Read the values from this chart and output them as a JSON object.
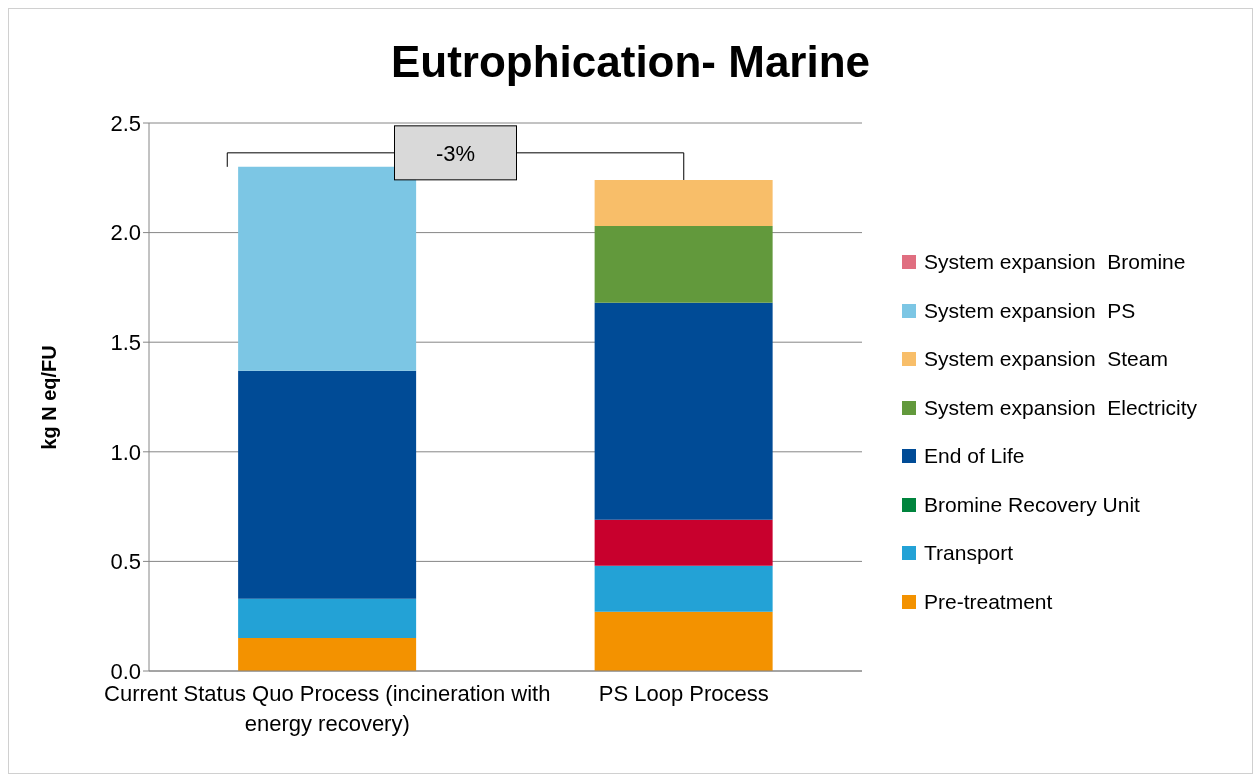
{
  "chart_data": {
    "type": "bar",
    "title": "Eutrophication- Marine",
    "ylabel": "kg N eq/FU",
    "categories": [
      "Current Status Quo Process (incineration with energy recovery)",
      "PS Loop Process"
    ],
    "stacked": true,
    "ylim": [
      0,
      2.5
    ],
    "yticks": [
      {
        "value": 0,
        "label": "0.0"
      },
      {
        "value": 0.5,
        "label": "0.5"
      },
      {
        "value": 1,
        "label": "1.0"
      },
      {
        "value": 1.5,
        "label": "1.5"
      },
      {
        "value": 2,
        "label": "2.0"
      },
      {
        "value": 2.5,
        "label": "2.5"
      }
    ],
    "grid": "y",
    "legend": "right",
    "annotations": [
      "-3%"
    ],
    "series": [
      {
        "name": "Pre-treatment",
        "color": "#f39200",
        "values": [
          0.15,
          0.27
        ]
      },
      {
        "name": "Transport",
        "color": "#23a2d6",
        "values": [
          0.18,
          0.21
        ]
      },
      {
        "color": "#c8002d",
        "values": [
          0,
          0.21
        ]
      },
      {
        "name": "Bromine Recovery Unit",
        "color": "#00843d",
        "values": [
          0,
          0
        ]
      },
      {
        "name": "End of Life",
        "color": "#004b96",
        "values": [
          1.04,
          0.99
        ]
      },
      {
        "name": "System expansion  Electricity",
        "color": "#62993c",
        "values": [
          0,
          0.35
        ]
      },
      {
        "name": "System expansion  Steam",
        "color": "#f8be69",
        "values": [
          0,
          0.21
        ]
      },
      {
        "name": "System expansion  PS",
        "color": "#7cc6e4",
        "values": [
          0.93,
          0
        ]
      },
      {
        "name": "System expansion  Bromine",
        "color": "#e06e80",
        "values": [
          0,
          0
        ]
      }
    ]
  }
}
